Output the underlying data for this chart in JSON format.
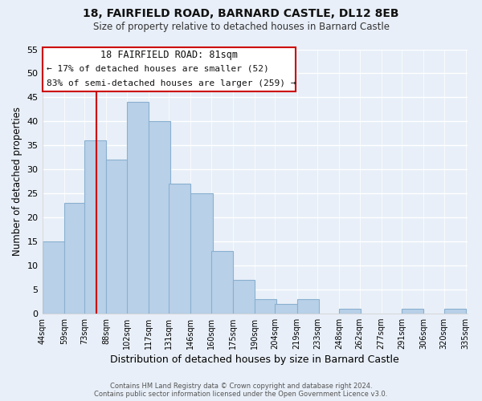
{
  "title_line1": "18, FAIRFIELD ROAD, BARNARD CASTLE, DL12 8EB",
  "title_line2": "Size of property relative to detached houses in Barnard Castle",
  "xlabel": "Distribution of detached houses by size in Barnard Castle",
  "ylabel": "Number of detached properties",
  "bin_labels": [
    "44sqm",
    "59sqm",
    "73sqm",
    "88sqm",
    "102sqm",
    "117sqm",
    "131sqm",
    "146sqm",
    "160sqm",
    "175sqm",
    "190sqm",
    "204sqm",
    "219sqm",
    "233sqm",
    "248sqm",
    "262sqm",
    "277sqm",
    "291sqm",
    "306sqm",
    "320sqm",
    "335sqm"
  ],
  "bar_values": [
    15,
    23,
    36,
    32,
    44,
    40,
    27,
    25,
    13,
    7,
    3,
    2,
    3,
    0,
    1,
    0,
    0,
    1,
    0,
    1
  ],
  "bar_color": "#b8d0e8",
  "bar_edge_color": "#8ab0d0",
  "ylim": [
    0,
    55
  ],
  "yticks": [
    0,
    5,
    10,
    15,
    20,
    25,
    30,
    35,
    40,
    45,
    50,
    55
  ],
  "vline_x": 81,
  "vline_color": "#cc0000",
  "annotation_title": "18 FAIRFIELD ROAD: 81sqm",
  "annotation_line1": "← 17% of detached houses are smaller (52)",
  "annotation_line2": "83% of semi-detached houses are larger (259) →",
  "annotation_box_color": "#ffffff",
  "annotation_box_edge": "#cc0000",
  "footer_line1": "Contains HM Land Registry data © Crown copyright and database right 2024.",
  "footer_line2": "Contains public sector information licensed under the Open Government Licence v3.0.",
  "background_color": "#e8eff8",
  "plot_bg_color": "#e8eff8",
  "bin_width": 15,
  "bin_starts": [
    44,
    59,
    73,
    88,
    102,
    117,
    131,
    146,
    160,
    175,
    190,
    204,
    219,
    233,
    248,
    262,
    277,
    291,
    306,
    320
  ],
  "figsize": [
    6.0,
    5.0
  ],
  "dpi": 100
}
